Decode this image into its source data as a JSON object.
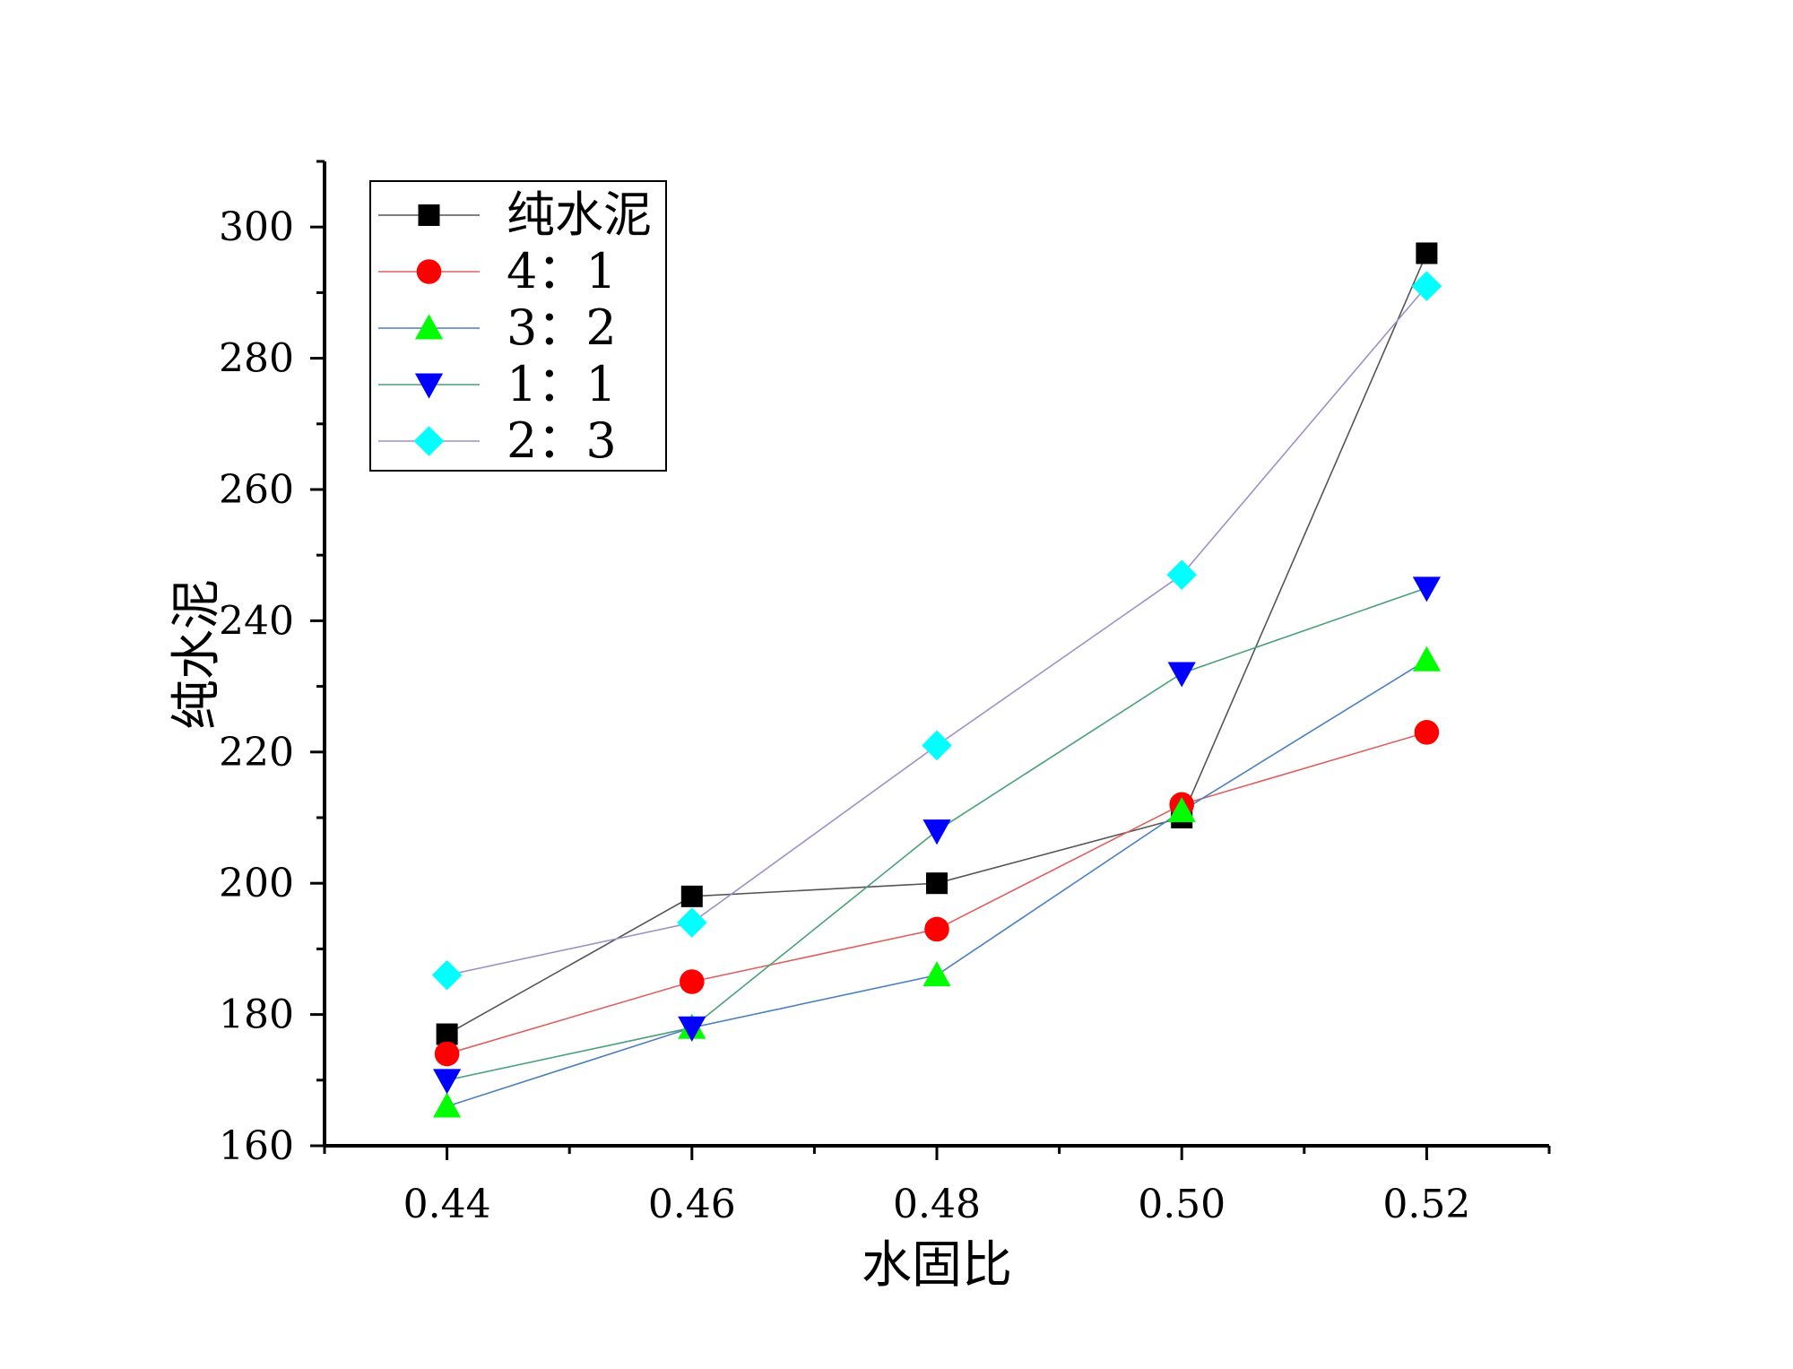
{
  "chart_data": {
    "type": "line",
    "xlabel": "水固比",
    "ylabel": "纯水泥",
    "xlim": [
      0.43,
      0.53
    ],
    "ylim": [
      160,
      310
    ],
    "x": [
      0.44,
      0.46,
      0.48,
      0.5,
      0.52
    ],
    "x_tick_labels": [
      "0.44",
      "0.46",
      "0.48",
      "0.50",
      "0.52"
    ],
    "y_ticks": [
      160,
      180,
      200,
      220,
      240,
      260,
      280,
      300
    ],
    "y_tick_labels": [
      "160",
      "180",
      "200",
      "220",
      "240",
      "260",
      "280",
      "300"
    ],
    "grid": false,
    "legend_position": "top-left",
    "series": [
      {
        "name": "纯水泥",
        "values": [
          177,
          198,
          200,
          210,
          296
        ],
        "marker": "square",
        "marker_color": "#000000",
        "line_color": "#555555"
      },
      {
        "name": "4：1",
        "values": [
          174,
          185,
          193,
          212,
          223
        ],
        "marker": "circle",
        "marker_color": "#ff0000",
        "line_color": "#e06060"
      },
      {
        "name": "3：2",
        "values": [
          166,
          178,
          186,
          211,
          234
        ],
        "marker": "triangle-up",
        "marker_color": "#00ff00",
        "line_color": "#4a7fc0"
      },
      {
        "name": "1：1",
        "values": [
          170,
          178,
          208,
          232,
          245
        ],
        "marker": "triangle-down",
        "marker_color": "#0000ff",
        "line_color": "#4aa07a"
      },
      {
        "name": "2：3",
        "values": [
          186,
          194,
          221,
          247,
          291
        ],
        "marker": "diamond",
        "marker_color": "#00ffff",
        "line_color": "#a090c8"
      }
    ]
  }
}
